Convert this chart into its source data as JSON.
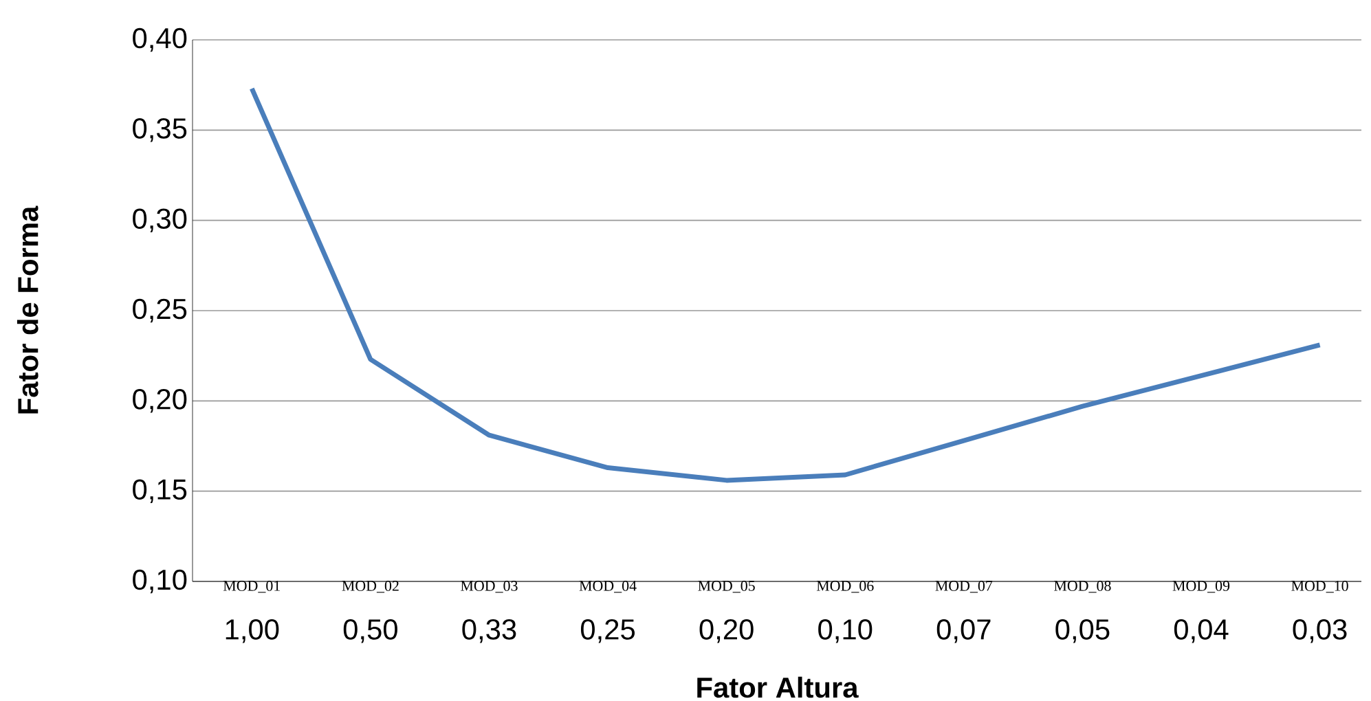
{
  "chart_data": {
    "type": "line",
    "xlabel": "Fator Altura",
    "ylabel": "Fator de Forma",
    "categories": [
      "MOD_01",
      "MOD_02",
      "MOD_03",
      "MOD_04",
      "MOD_05",
      "MOD_06",
      "MOD_07",
      "MOD_08",
      "MOD_09",
      "MOD_10"
    ],
    "series": [
      {
        "color": "#4a7ebb",
        "values": [
          0.373,
          0.223,
          0.181,
          0.163,
          0.156,
          0.159,
          0.178,
          0.197,
          0.214,
          0.231
        ]
      }
    ],
    "annotations": [
      "1,00",
      "0,50",
      "0,33",
      "0,25",
      "0,20",
      "0,10",
      "0,07",
      "0,05",
      "0,04",
      "0,03"
    ],
    "ylim": [
      0.1,
      0.4
    ],
    "yticks": [
      {
        "value": 0.1,
        "label": "0,10"
      },
      {
        "value": 0.15,
        "label": "0,15"
      },
      {
        "value": 0.2,
        "label": "0,20"
      },
      {
        "value": 0.25,
        "label": "0,25"
      },
      {
        "value": 0.3,
        "label": "0,30"
      },
      {
        "value": 0.35,
        "label": "0,35"
      },
      {
        "value": 0.4,
        "label": "0,40"
      }
    ],
    "grid": "y",
    "marker": "none",
    "line_style": "solid"
  }
}
